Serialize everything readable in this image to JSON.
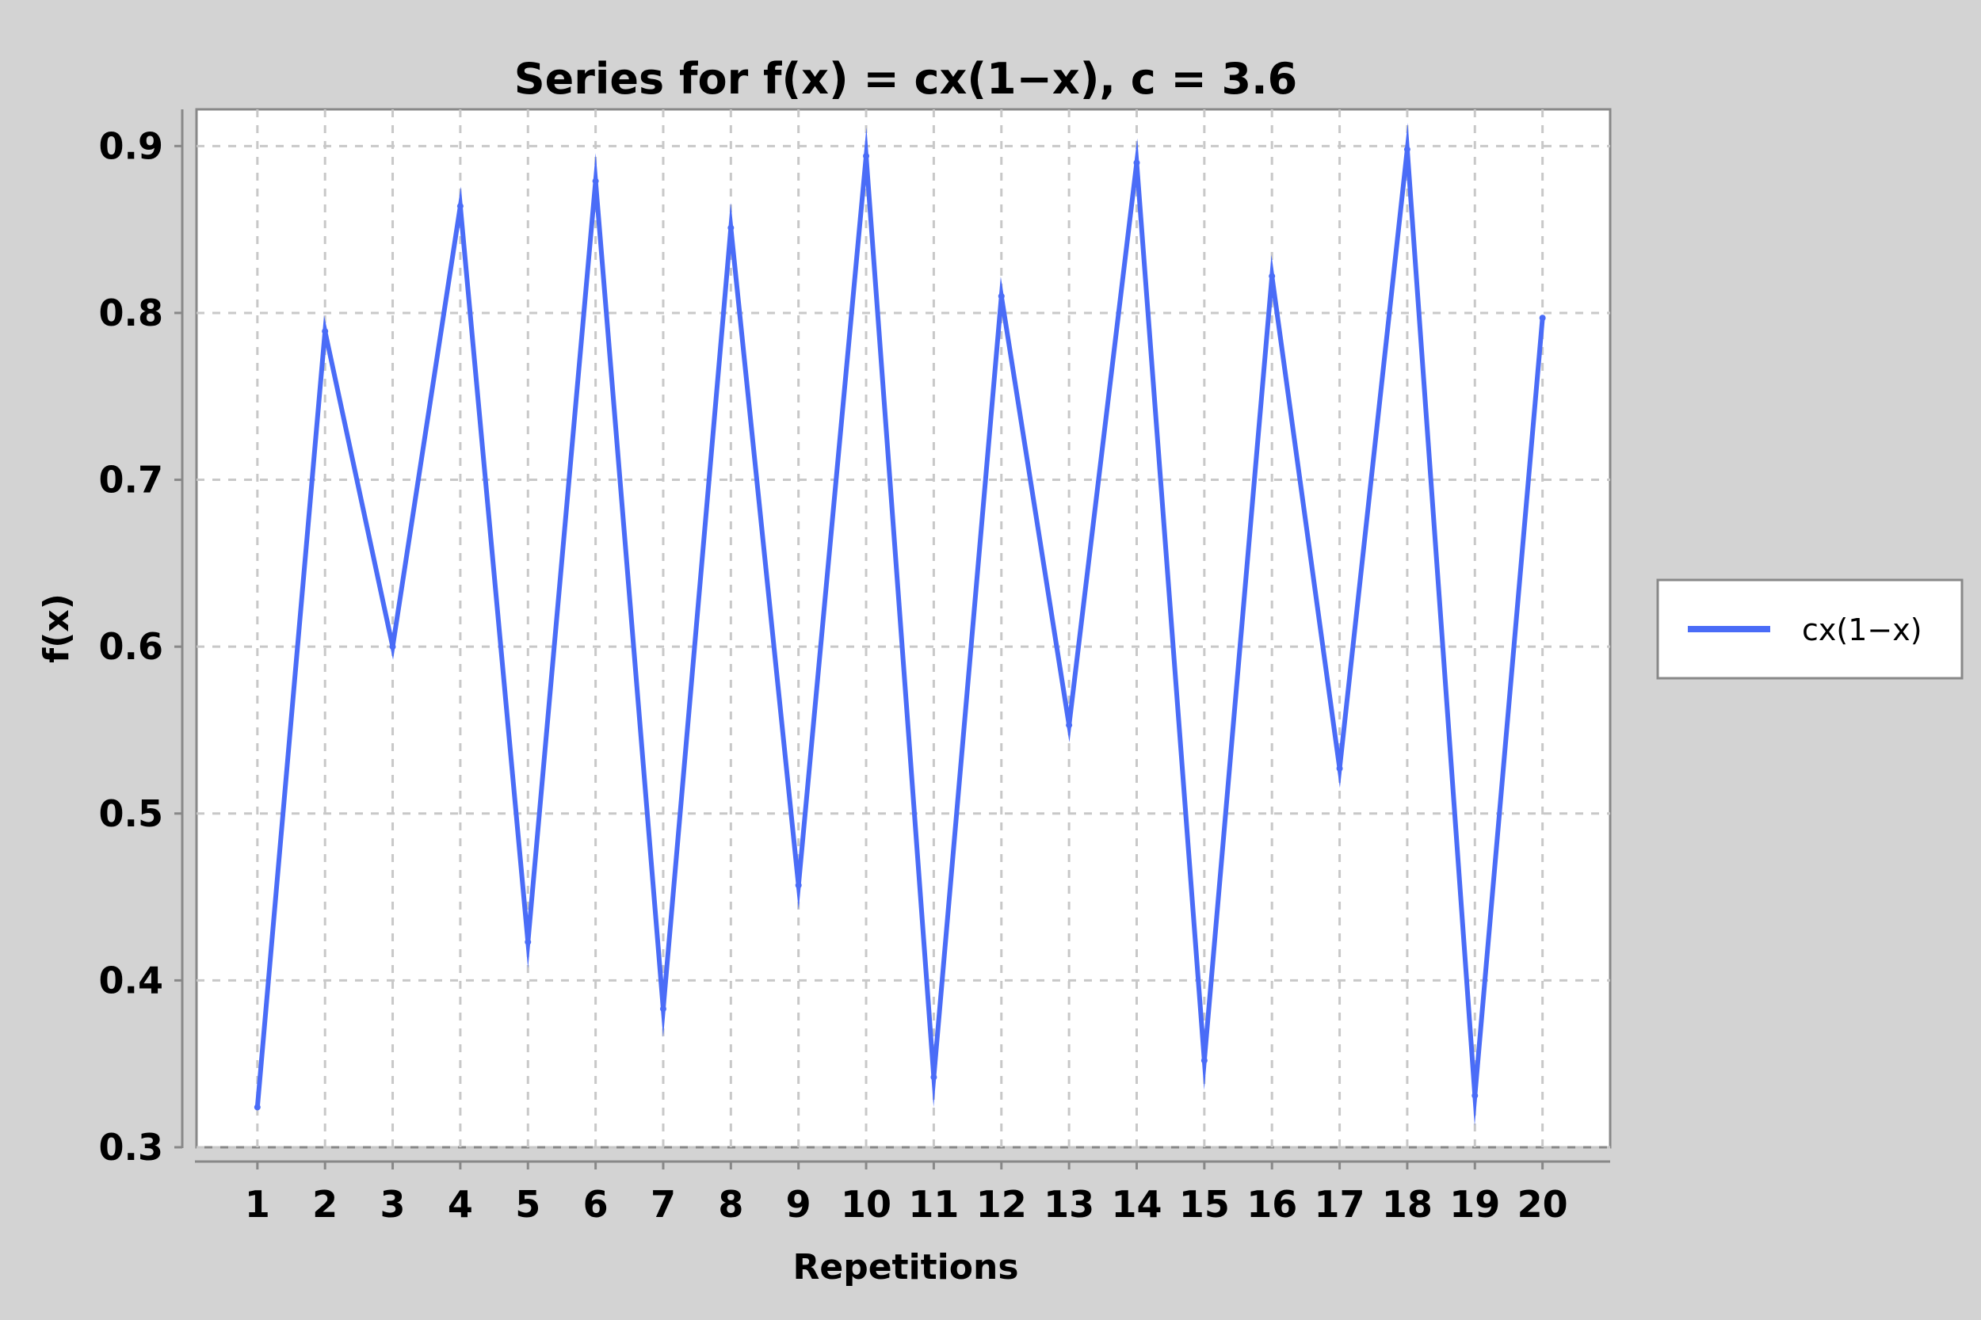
{
  "chart_data": {
    "type": "line",
    "title": "Series for f(x) = cx(1−x), c = 3.6",
    "xlabel": "Repetitions",
    "ylabel": "f(x)",
    "x": [
      1,
      2,
      3,
      4,
      5,
      6,
      7,
      8,
      9,
      10,
      11,
      12,
      13,
      14,
      15,
      16,
      17,
      18,
      19,
      20
    ],
    "xlim": [
      0.1,
      21
    ],
    "ylim": [
      0.3,
      0.922
    ],
    "yticks": [
      0.3,
      0.4,
      0.5,
      0.6,
      0.7,
      0.8,
      0.9
    ],
    "ytick_labels": [
      "0.3",
      "0.4",
      "0.5",
      "0.6",
      "0.7",
      "0.8",
      "0.9"
    ],
    "xtick_labels": [
      "1",
      "2",
      "3",
      "4",
      "5",
      "6",
      "7",
      "8",
      "9",
      "10",
      "11",
      "12",
      "13",
      "14",
      "15",
      "16",
      "17",
      "18",
      "19",
      "20"
    ],
    "grid": true,
    "legend_position": "right",
    "series": [
      {
        "name": "cx(1−x)",
        "color": "#4a6cf7",
        "values": [
          0.324,
          0.789,
          0.6,
          0.864,
          0.423,
          0.879,
          0.383,
          0.851,
          0.457,
          0.894,
          0.342,
          0.81,
          0.553,
          0.89,
          0.352,
          0.822,
          0.527,
          0.898,
          0.331,
          0.797
        ]
      }
    ]
  }
}
